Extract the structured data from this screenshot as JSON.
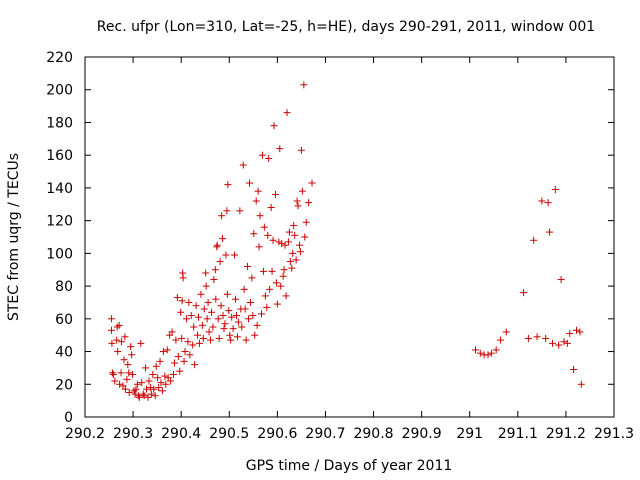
{
  "chart_data": {
    "type": "scatter",
    "title": "Rec. ufpr (Lon=310, Lat=-25, h=HE), days 290-291, 2011, window 001",
    "xlabel": "GPS time / Days of year 2011",
    "ylabel": "STEC from uqrg / TECUs",
    "xlim": [
      290.2,
      291.3
    ],
    "ylim": [
      0,
      220
    ],
    "x_ticks": [
      "290.2",
      "290.3",
      "290.4",
      "290.5",
      "290.6",
      "290.7",
      "290.8",
      "290.9",
      "291",
      "291.1",
      "291.2",
      "291.3"
    ],
    "y_ticks": [
      "0",
      "20",
      "40",
      "60",
      "80",
      "100",
      "120",
      "140",
      "160",
      "180",
      "200",
      "220"
    ],
    "grid": false,
    "marker": "+",
    "marker_color": "#cc0000",
    "points": [
      [
        290.255,
        60
      ],
      [
        290.255,
        53
      ],
      [
        290.256,
        45
      ],
      [
        290.257,
        27
      ],
      [
        290.259,
        26
      ],
      [
        290.262,
        22
      ],
      [
        290.266,
        47
      ],
      [
        290.267,
        55
      ],
      [
        290.268,
        40
      ],
      [
        290.271,
        56
      ],
      [
        290.272,
        20
      ],
      [
        290.275,
        27
      ],
      [
        290.276,
        46
      ],
      [
        290.279,
        19
      ],
      [
        290.281,
        35
      ],
      [
        290.283,
        49
      ],
      [
        290.284,
        17
      ],
      [
        290.287,
        23
      ],
      [
        290.289,
        32
      ],
      [
        290.291,
        27
      ],
      [
        290.292,
        15
      ],
      [
        290.295,
        43
      ],
      [
        290.297,
        38
      ],
      [
        290.299,
        26
      ],
      [
        290.302,
        16
      ],
      [
        290.304,
        14
      ],
      [
        290.306,
        17
      ],
      [
        290.309,
        20
      ],
      [
        290.311,
        13
      ],
      [
        290.313,
        12
      ],
      [
        290.316,
        45
      ],
      [
        290.318,
        21
      ],
      [
        290.321,
        14
      ],
      [
        290.323,
        13
      ],
      [
        290.326,
        30
      ],
      [
        290.328,
        17
      ],
      [
        290.331,
        12
      ],
      [
        290.333,
        22
      ],
      [
        290.336,
        18
      ],
      [
        290.338,
        14
      ],
      [
        290.341,
        26
      ],
      [
        290.343,
        17
      ],
      [
        290.346,
        13
      ],
      [
        290.348,
        31
      ],
      [
        290.351,
        24
      ],
      [
        290.353,
        18
      ],
      [
        290.356,
        34
      ],
      [
        290.358,
        21
      ],
      [
        290.361,
        16
      ],
      [
        290.363,
        40
      ],
      [
        290.366,
        25
      ],
      [
        290.368,
        20
      ],
      [
        290.371,
        41
      ],
      [
        290.373,
        24
      ],
      [
        290.376,
        50
      ],
      [
        290.378,
        22
      ],
      [
        290.381,
        52
      ],
      [
        290.384,
        26
      ],
      [
        290.386,
        33
      ],
      [
        290.389,
        47
      ],
      [
        290.392,
        73
      ],
      [
        290.394,
        37
      ],
      [
        290.397,
        28
      ],
      [
        290.399,
        64
      ],
      [
        290.401,
        48
      ],
      [
        290.402,
        71
      ],
      [
        290.403,
        88
      ],
      [
        290.404,
        85
      ],
      [
        290.406,
        34
      ],
      [
        290.408,
        40
      ],
      [
        290.411,
        60
      ],
      [
        290.414,
        46
      ],
      [
        290.416,
        70
      ],
      [
        290.418,
        38
      ],
      [
        290.421,
        62
      ],
      [
        290.424,
        44
      ],
      [
        290.426,
        55
      ],
      [
        290.428,
        32
      ],
      [
        290.431,
        68
      ],
      [
        290.434,
        50
      ],
      [
        290.436,
        61
      ],
      [
        290.438,
        45
      ],
      [
        290.441,
        75
      ],
      [
        290.444,
        56
      ],
      [
        290.446,
        48
      ],
      [
        290.448,
        66
      ],
      [
        290.451,
        88
      ],
      [
        290.452,
        80
      ],
      [
        290.454,
        60
      ],
      [
        290.456,
        70
      ],
      [
        290.458,
        52
      ],
      [
        290.461,
        47
      ],
      [
        290.463,
        64
      ],
      [
        290.466,
        55
      ],
      [
        290.468,
        84
      ],
      [
        290.471,
        90
      ],
      [
        290.472,
        72
      ],
      [
        290.474,
        104
      ],
      [
        290.475,
        105
      ],
      [
        290.477,
        60
      ],
      [
        290.479,
        48
      ],
      [
        290.481,
        95
      ],
      [
        290.483,
        68
      ],
      [
        290.484,
        123
      ],
      [
        290.486,
        109
      ],
      [
        290.487,
        62
      ],
      [
        290.489,
        54
      ],
      [
        290.491,
        57
      ],
      [
        290.493,
        99
      ],
      [
        290.495,
        126
      ],
      [
        290.496,
        75
      ],
      [
        290.497,
        142
      ],
      [
        290.499,
        65
      ],
      [
        290.501,
        50
      ],
      [
        290.503,
        47
      ],
      [
        290.505,
        61
      ],
      [
        290.508,
        54
      ],
      [
        290.511,
        99
      ],
      [
        290.513,
        72
      ],
      [
        290.515,
        62
      ],
      [
        290.517,
        49
      ],
      [
        290.519,
        58
      ],
      [
        290.522,
        126
      ],
      [
        290.524,
        66
      ],
      [
        290.526,
        55
      ],
      [
        290.529,
        154
      ],
      [
        290.531,
        78
      ],
      [
        290.533,
        66
      ],
      [
        290.535,
        47
      ],
      [
        290.538,
        92
      ],
      [
        290.54,
        60
      ],
      [
        290.542,
        143
      ],
      [
        290.544,
        70
      ],
      [
        290.547,
        85
      ],
      [
        290.549,
        62
      ],
      [
        290.551,
        112
      ],
      [
        290.553,
        50
      ],
      [
        290.556,
        132
      ],
      [
        290.558,
        56
      ],
      [
        290.56,
        138
      ],
      [
        290.562,
        104
      ],
      [
        290.564,
        123
      ],
      [
        290.567,
        63
      ],
      [
        290.569,
        160
      ],
      [
        290.571,
        89
      ],
      [
        290.573,
        116
      ],
      [
        290.575,
        74
      ],
      [
        290.578,
        67
      ],
      [
        290.58,
        111
      ],
      [
        290.582,
        158
      ],
      [
        290.584,
        78
      ],
      [
        290.587,
        128
      ],
      [
        290.589,
        89
      ],
      [
        290.591,
        108
      ],
      [
        290.593,
        178
      ],
      [
        290.596,
        136
      ],
      [
        290.598,
        82
      ],
      [
        290.6,
        69
      ],
      [
        290.603,
        107
      ],
      [
        290.605,
        164
      ],
      [
        290.607,
        80
      ],
      [
        290.609,
        106
      ],
      [
        290.612,
        86
      ],
      [
        290.614,
        90
      ],
      [
        290.616,
        105
      ],
      [
        290.618,
        74
      ],
      [
        290.62,
        186
      ],
      [
        290.623,
        107
      ],
      [
        290.625,
        113
      ],
      [
        290.627,
        95
      ],
      [
        290.63,
        91
      ],
      [
        290.632,
        100
      ],
      [
        290.634,
        117
      ],
      [
        290.636,
        111
      ],
      [
        290.639,
        96
      ],
      [
        290.641,
        132
      ],
      [
        290.643,
        129
      ],
      [
        290.646,
        105
      ],
      [
        290.648,
        101
      ],
      [
        290.65,
        163
      ],
      [
        290.652,
        138
      ],
      [
        290.655,
        203
      ],
      [
        290.657,
        110
      ],
      [
        290.66,
        119
      ],
      [
        290.665,
        131
      ],
      [
        290.672,
        143
      ]
    ],
    "points2": [
      [
        291.012,
        41
      ],
      [
        291.022,
        39
      ],
      [
        291.03,
        38
      ],
      [
        291.038,
        38
      ],
      [
        291.045,
        39
      ],
      [
        291.055,
        41
      ],
      [
        291.064,
        47
      ],
      [
        291.076,
        52
      ],
      [
        291.112,
        76
      ],
      [
        291.122,
        48
      ],
      [
        291.133,
        108
      ],
      [
        291.14,
        49
      ],
      [
        291.15,
        132
      ],
      [
        291.158,
        48
      ],
      [
        291.163,
        131
      ],
      [
        291.166,
        113
      ],
      [
        291.172,
        45
      ],
      [
        291.178,
        139
      ],
      [
        291.185,
        44
      ],
      [
        291.19,
        84
      ],
      [
        291.196,
        46
      ],
      [
        291.203,
        45
      ],
      [
        291.208,
        51
      ],
      [
        291.216,
        29
      ],
      [
        291.222,
        53
      ],
      [
        291.229,
        52
      ],
      [
        291.232,
        20
      ]
    ]
  }
}
